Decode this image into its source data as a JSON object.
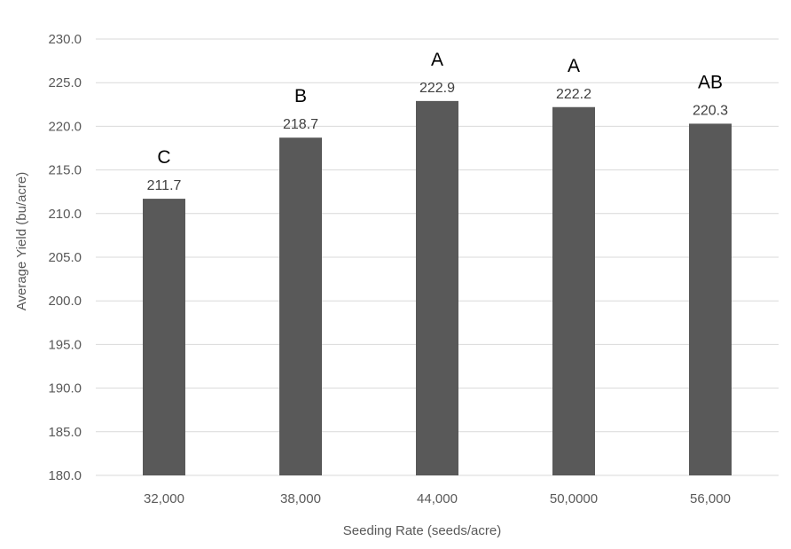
{
  "chart_data": {
    "type": "bar",
    "categories": [
      "32,000",
      "38,000",
      "44,000",
      "50,0000",
      "56,000"
    ],
    "values": [
      211.7,
      218.7,
      222.9,
      222.2,
      220.3
    ],
    "data_labels": [
      "211.7",
      "218.7",
      "222.9",
      "222.2",
      "220.3"
    ],
    "significance_letters": [
      "C",
      "B",
      "A",
      "A",
      "AB"
    ],
    "xlabel": "Seeding Rate (seeds/acre)",
    "ylabel": "Average Yield (bu/acre)",
    "ylim": [
      180,
      230
    ],
    "yticks": [
      "180.0",
      "185.0",
      "190.0",
      "195.0",
      "200.0",
      "205.0",
      "210.0",
      "215.0",
      "220.0",
      "225.0",
      "230.0"
    ],
    "grid": true,
    "bar_color": "#595959"
  }
}
